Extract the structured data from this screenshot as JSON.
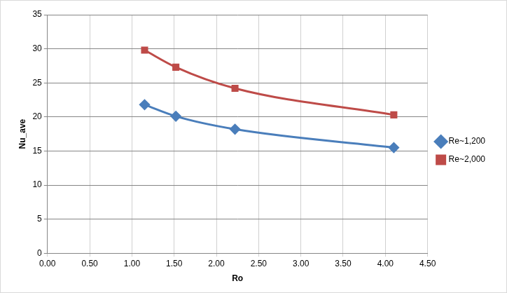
{
  "chart_data": {
    "type": "line",
    "x_label": "Ro",
    "y_label": "Nu_ave",
    "x": [
      1.15,
      1.52,
      2.22,
      4.1
    ],
    "series": [
      {
        "name": "Re~1,200",
        "color": "#4a7ebb",
        "marker": "diamond",
        "line_style": "smooth",
        "values": [
          21.8,
          20.1,
          18.2,
          15.5
        ]
      },
      {
        "name": "Re~2,000",
        "color": "#be4b48",
        "marker": "square",
        "line_style": "smooth",
        "values": [
          29.8,
          27.3,
          24.2,
          20.3
        ]
      }
    ],
    "xlim": [
      0,
      4.5
    ],
    "xticks": [
      {
        "value": 0,
        "label": "0.00"
      },
      {
        "value": 0.5,
        "label": "0.50"
      },
      {
        "value": 1,
        "label": "1.00"
      },
      {
        "value": 1.5,
        "label": "1.50"
      },
      {
        "value": 2,
        "label": "2.00"
      },
      {
        "value": 2.5,
        "label": "2.50"
      },
      {
        "value": 3,
        "label": "3.00"
      },
      {
        "value": 3.5,
        "label": "3.50"
      },
      {
        "value": 4,
        "label": "4.00"
      },
      {
        "value": 4.5,
        "label": "4.50"
      }
    ],
    "ylim": [
      0,
      35
    ],
    "yticks": [
      0,
      5,
      10,
      15,
      20,
      25,
      30,
      35
    ],
    "grid": true,
    "legend": "right"
  }
}
